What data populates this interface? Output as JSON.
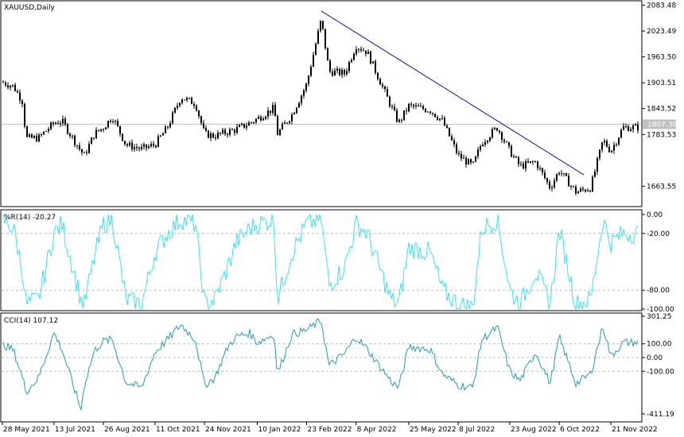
{
  "chart_data": [
    {
      "type": "candlestick",
      "title": "XAUUSD,Daily",
      "symbol": "XAUUSD",
      "timeframe": "Daily",
      "current_price_label": "1807.30",
      "current_price": 1807.3,
      "ylim": [
        1620,
        2090
      ],
      "y_ticks": [
        "2083.48",
        "2023.49",
        "1963.50",
        "1903.51",
        "1843.52",
        "1783.53",
        "1663.55"
      ],
      "y_tick_values": [
        2083.48,
        2023.49,
        1963.5,
        1903.51,
        1843.52,
        1783.53,
        1663.55
      ],
      "x_ticks": [
        "28 May 2021",
        "13 Jul 2021",
        "26 Aug 2021",
        "11 Oct 2021",
        "24 Nov 2021",
        "10 Jan 2022",
        "23 Feb 2022",
        "8 Apr 2022",
        "25 May 2022",
        "8 Jul 2022",
        "23 Aug 2022",
        "6 Oct 2022",
        "21 Nov 2022"
      ],
      "trendline": {
        "from": {
          "date": "8 Mar 2022",
          "price": 2070
        },
        "to": {
          "date": "28 Oct 2022",
          "price": 1690
        }
      },
      "close_path": {
        "dates": [
          "28 May 2021",
          "7 Jun 2021",
          "15 Jun 2021",
          "18 Jun 2021",
          "29 Jun 2021",
          "13 Jul 2021",
          "20 Jul 2021",
          "6 Aug 2021",
          "9 Aug 2021",
          "18 Aug 2021",
          "26 Aug 2021",
          "3 Sep 2021",
          "15 Sep 2021",
          "29 Sep 2021",
          "11 Oct 2021",
          "22 Oct 2021",
          "3 Nov 2021",
          "16 Nov 2021",
          "24 Nov 2021",
          "3 Dec 2021",
          "15 Dec 2021",
          "22 Dec 2021",
          "3 Jan 2022",
          "10 Jan 2022",
          "25 Jan 2022",
          "28 Jan 2022",
          "10 Feb 2022",
          "23 Feb 2022",
          "8 Mar 2022",
          "15 Mar 2022",
          "29 Mar 2022",
          "8 Apr 2022",
          "18 Apr 2022",
          "9 May 2022",
          "16 May 2022",
          "25 May 2022",
          "13 Jun 2022",
          "24 Jun 2022",
          "8 Jul 2022",
          "21 Jul 2022",
          "29 Jul 2022",
          "12 Aug 2022",
          "23 Aug 2022",
          "1 Sep 2022",
          "15 Sep 2022",
          "28 Sep 2022",
          "6 Oct 2022",
          "21 Oct 2022",
          "3 Nov 2022",
          "14 Nov 2022",
          "21 Nov 2022",
          "2 Dec 2022"
        ],
        "close": [
          1905,
          1895,
          1860,
          1775,
          1775,
          1810,
          1815,
          1745,
          1735,
          1785,
          1800,
          1825,
          1760,
          1750,
          1760,
          1800,
          1870,
          1855,
          1785,
          1780,
          1790,
          1795,
          1810,
          1820,
          1845,
          1785,
          1830,
          1900,
          2050,
          1930,
          1925,
          1990,
          1975,
          1850,
          1810,
          1850,
          1840,
          1815,
          1735,
          1710,
          1765,
          1800,
          1745,
          1710,
          1720,
          1660,
          1700,
          1650,
          1660,
          1770,
          1745,
          1800
        ]
      }
    },
    {
      "type": "line",
      "title": "%R(14) -20.27",
      "indicator": "%R(14)",
      "last_value": -20.27,
      "ylim": [
        -100,
        0
      ],
      "y_ticks": [
        "0.00",
        "-20.00",
        "-80.00",
        "-100.00"
      ],
      "y_tick_values": [
        0,
        -20,
        -80,
        -100
      ],
      "levels": [
        -20,
        -80
      ],
      "color": "#40e0e8",
      "series": [
        {
          "dates": [
            "28 May 2021",
            "7 Jun 2021",
            "15 Jun 2021",
            "18 Jun 2021",
            "29 Jun 2021",
            "13 Jul 2021",
            "20 Jul 2021",
            "6 Aug 2021",
            "9 Aug 2021",
            "18 Aug 2021",
            "26 Aug 2021",
            "3 Sep 2021",
            "15 Sep 2021",
            "29 Sep 2021",
            "11 Oct 2021",
            "22 Oct 2021",
            "3 Nov 2021",
            "16 Nov 2021",
            "24 Nov 2021",
            "3 Dec 2021",
            "15 Dec 2021",
            "22 Dec 2021",
            "3 Jan 2022",
            "10 Jan 2022",
            "25 Jan 2022",
            "28 Jan 2022",
            "10 Feb 2022",
            "23 Feb 2022",
            "8 Mar 2022",
            "15 Mar 2022",
            "29 Mar 2022",
            "8 Apr 2022",
            "18 Apr 2022",
            "9 May 2022",
            "16 May 2022",
            "25 May 2022",
            "13 Jun 2022",
            "24 Jun 2022",
            "8 Jul 2022",
            "21 Jul 2022",
            "29 Jul 2022",
            "12 Aug 2022",
            "23 Aug 2022",
            "1 Sep 2022",
            "15 Sep 2022",
            "28 Sep 2022",
            "6 Oct 2022",
            "21 Oct 2022",
            "3 Nov 2022",
            "14 Nov 2022",
            "21 Nov 2022",
            "2 Dec 2022"
          ],
          "values": [
            -5,
            -15,
            -60,
            -95,
            -90,
            -20,
            -10,
            -90,
            -95,
            -45,
            -10,
            -5,
            -90,
            -95,
            -40,
            -20,
            -5,
            -10,
            -95,
            -90,
            -55,
            -30,
            -15,
            -10,
            -5,
            -90,
            -40,
            -10,
            -5,
            -75,
            -55,
            -10,
            -20,
            -90,
            -95,
            -35,
            -40,
            -80,
            -95,
            -98,
            -15,
            -5,
            -80,
            -95,
            -60,
            -95,
            -15,
            -95,
            -90,
            -5,
            -30,
            -20
          ]
        }
      ]
    },
    {
      "type": "line",
      "title": "CCI(14) 107.12",
      "indicator": "CCI(14)",
      "last_value": 107.12,
      "ylim": [
        -411.19,
        301.25
      ],
      "y_ticks": [
        "301.25",
        "100.00",
        "0.00",
        "-100.00",
        "-411.19"
      ],
      "y_tick_values": [
        301.25,
        100,
        0,
        -100,
        -411.19
      ],
      "levels": [
        100,
        0,
        -100
      ],
      "color": "#2a9aa8",
      "series": [
        {
          "dates": [
            "28 May 2021",
            "7 Jun 2021",
            "15 Jun 2021",
            "18 Jun 2021",
            "29 Jun 2021",
            "13 Jul 2021",
            "20 Jul 2021",
            "6 Aug 2021",
            "9 Aug 2021",
            "18 Aug 2021",
            "26 Aug 2021",
            "3 Sep 2021",
            "15 Sep 2021",
            "29 Sep 2021",
            "11 Oct 2021",
            "22 Oct 2021",
            "3 Nov 2021",
            "16 Nov 2021",
            "24 Nov 2021",
            "3 Dec 2021",
            "15 Dec 2021",
            "22 Dec 2021",
            "3 Jan 2022",
            "10 Jan 2022",
            "25 Jan 2022",
            "28 Jan 2022",
            "10 Feb 2022",
            "23 Feb 2022",
            "8 Mar 2022",
            "15 Mar 2022",
            "29 Mar 2022",
            "8 Apr 2022",
            "18 Apr 2022",
            "9 May 2022",
            "16 May 2022",
            "25 May 2022",
            "13 Jun 2022",
            "24 Jun 2022",
            "8 Jul 2022",
            "21 Jul 2022",
            "29 Jul 2022",
            "12 Aug 2022",
            "23 Aug 2022",
            "1 Sep 2022",
            "15 Sep 2022",
            "28 Sep 2022",
            "6 Oct 2022",
            "21 Oct 2022",
            "3 Nov 2022",
            "14 Nov 2022",
            "21 Nov 2022",
            "2 Dec 2022"
          ],
          "values": [
            100,
            50,
            -150,
            -250,
            -150,
            180,
            60,
            -380,
            -200,
            50,
            120,
            130,
            -180,
            -220,
            40,
            130,
            240,
            130,
            -200,
            -150,
            80,
            150,
            180,
            110,
            170,
            -120,
            170,
            200,
            270,
            -60,
            30,
            150,
            60,
            -170,
            -220,
            80,
            60,
            -120,
            -200,
            -220,
            130,
            220,
            -100,
            -170,
            40,
            -190,
            150,
            -190,
            -120,
            230,
            10,
            110
          ]
        }
      ]
    }
  ]
}
